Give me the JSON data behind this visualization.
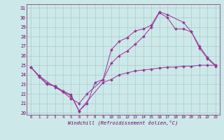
{
  "xlabel": "Windchill (Refroidissement éolien,°C)",
  "xlim": [
    -0.5,
    23.5
  ],
  "ylim": [
    19.8,
    31.4
  ],
  "xticks": [
    0,
    1,
    2,
    3,
    4,
    5,
    6,
    7,
    8,
    9,
    10,
    11,
    12,
    13,
    14,
    15,
    16,
    17,
    18,
    19,
    20,
    21,
    22,
    23
  ],
  "yticks": [
    20,
    21,
    22,
    23,
    24,
    25,
    26,
    27,
    28,
    29,
    30,
    31
  ],
  "bg_color": "#cce8e8",
  "grid_color": "#aacccc",
  "line_color": "#993399",
  "line1_x": [
    0,
    1,
    2,
    3,
    4,
    5,
    6,
    9,
    10,
    11,
    12,
    13,
    14,
    15,
    16,
    17,
    18,
    19,
    20,
    21,
    22,
    23
  ],
  "line1_y": [
    24.8,
    23.8,
    23.0,
    22.8,
    22.3,
    21.9,
    20.2,
    23.2,
    23.5,
    24.0,
    24.2,
    24.4,
    24.5,
    24.6,
    24.7,
    24.8,
    24.8,
    24.9,
    24.9,
    25.0,
    25.0,
    25.0
  ],
  "line2_x": [
    0,
    1,
    3,
    4,
    5,
    6,
    7,
    9,
    10,
    11,
    12,
    13,
    14,
    15,
    16,
    17,
    19,
    20,
    21,
    22,
    23
  ],
  "line2_y": [
    24.8,
    23.9,
    22.7,
    22.2,
    21.5,
    21.0,
    22.0,
    23.5,
    26.6,
    27.5,
    27.9,
    28.6,
    28.8,
    29.2,
    30.6,
    30.3,
    29.5,
    28.5,
    27.0,
    25.8,
    25.0
  ],
  "line3_x": [
    0,
    1,
    2,
    3,
    4,
    5,
    6,
    7,
    8,
    9,
    10,
    11,
    12,
    13,
    14,
    15,
    16,
    17,
    18,
    19,
    20,
    21,
    22,
    23
  ],
  "line3_y": [
    24.8,
    23.9,
    23.1,
    22.8,
    22.2,
    21.8,
    20.2,
    21.0,
    23.2,
    23.5,
    25.2,
    26.0,
    26.5,
    27.2,
    28.0,
    29.0,
    30.5,
    30.0,
    28.8,
    28.8,
    28.5,
    26.8,
    25.7,
    24.9
  ]
}
